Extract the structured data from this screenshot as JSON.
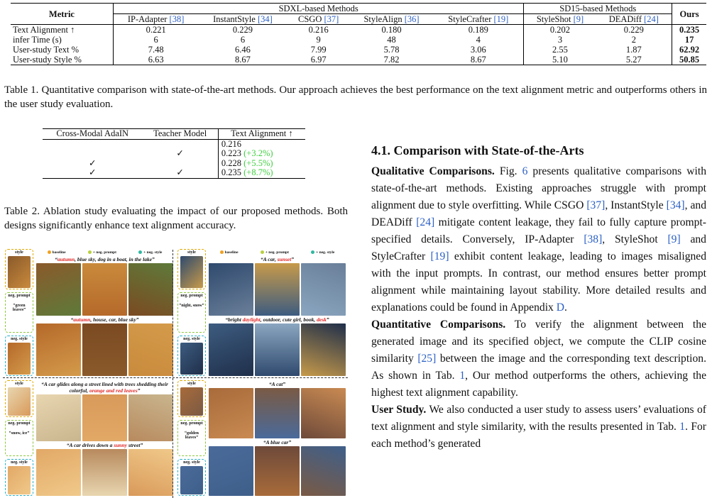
{
  "table1": {
    "header": {
      "metric": "Metric",
      "groups": [
        {
          "label": "SDXL-based Methods",
          "methods": [
            {
              "name": "IP-Adapter",
              "ref": "[38]"
            },
            {
              "name": "InstantStyle",
              "ref": "[34]"
            },
            {
              "name": "CSGO",
              "ref": "[37]"
            },
            {
              "name": "StyleAlign",
              "ref": "[36]"
            },
            {
              "name": "StyleCrafter",
              "ref": "[19]"
            }
          ]
        },
        {
          "label": "SD15-based Methods",
          "methods": [
            {
              "name": "StyleShot",
              "ref": "[9]"
            },
            {
              "name": "DEADiff",
              "ref": "[24]"
            }
          ]
        }
      ],
      "ours": "Ours"
    },
    "rows": [
      {
        "label": "Text Alignment ↑",
        "values": [
          "0.221",
          "0.229",
          "0.216",
          "0.180",
          "0.189",
          "0.202",
          "0.229"
        ],
        "ours": "0.235"
      },
      {
        "label": "infer Time (s)",
        "values": [
          "6",
          "6",
          "9",
          "48",
          "4",
          "3",
          "2"
        ],
        "ours": "17"
      },
      {
        "label": "User-study Text %",
        "values": [
          "7.48",
          "6.46",
          "7.99",
          "5.78",
          "3.06",
          "2.55",
          "1.87"
        ],
        "ours": "62.92"
      },
      {
        "label": "User-study Style %",
        "values": [
          "6.63",
          "8.67",
          "6.97",
          "7.82",
          "8.67",
          "5.10",
          "5.27"
        ],
        "ours": "50.85"
      }
    ],
    "caption": "Table 1. Quantitative comparison with state-of-the-art methods. Our approach achieves the best performance on the text alignment metric and outperforms others in the user study evaluation."
  },
  "table2": {
    "columns": [
      "Cross-Modal AdaIN",
      "Teacher Model",
      "Text Alignment ↑"
    ],
    "rows": [
      {
        "cells": [
          null,
          null
        ],
        "value": "0.216"
      },
      {
        "cells": [
          null,
          "✓"
        ],
        "value": "0.223",
        "gain": "(+3.2%)"
      },
      {
        "cells": [
          "✓",
          null
        ],
        "value": "0.228",
        "gain": "(+5.5%)"
      },
      {
        "cells": [
          "✓",
          "✓"
        ],
        "value": "0.235",
        "gain": "(+8.7%)"
      }
    ],
    "caption": "Table 2. Ablation study evaluating the impact of our proposed methods. Both designs significantly enhance text alignment accuracy."
  },
  "figure": {
    "legend": [
      "baseline",
      "+ neg. prompt",
      "+ neg. style"
    ],
    "side_labels": {
      "style": "style",
      "neg_prompt": "neg. prompt",
      "neg_style": "neg. style"
    },
    "panels": [
      {
        "neg_prompt": "“green leaves”",
        "prompts": [
          [
            {
              "text": "“"
            },
            {
              "highlight": "autumn"
            },
            {
              "text": ", blue sky, dog in a boat, in the lake”"
            }
          ],
          [
            {
              "text": "“"
            },
            {
              "highlight": "autumn"
            },
            {
              "text": ", house, car, blue sky”"
            }
          ]
        ]
      },
      {
        "neg_prompt": "“night, snow”",
        "prompts": [
          [
            {
              "text": "“A car, "
            },
            {
              "highlight": "sunset"
            },
            {
              "text": "”"
            }
          ],
          [
            {
              "text": "“bright "
            },
            {
              "highlight": "daylight"
            },
            {
              "text": ", outdoor, cute girl, book, "
            },
            {
              "highlight": "desk"
            },
            {
              "text": "”"
            }
          ]
        ]
      },
      {
        "neg_prompt": "“snow, ice”",
        "prompts": [
          [
            {
              "text": "“A car glides along a street lined with trees shedding their colorful, "
            },
            {
              "highlight": "orange and red leaves"
            },
            {
              "text": "”"
            }
          ],
          [
            {
              "text": "“A car drives down a "
            },
            {
              "highlight": "sunny"
            },
            {
              "text": " street”"
            }
          ]
        ]
      },
      {
        "neg_prompt": "“golden leaves”",
        "prompts": [
          [
            {
              "text": "“A cat”"
            }
          ],
          [
            {
              "text": "“A blue car”"
            }
          ]
        ]
      }
    ]
  },
  "section": {
    "heading": "4.1. Comparison with State-of-the-Arts",
    "paragraphs": [
      {
        "lead": "Qualitative Comparisons.",
        "runs": [
          {
            "text": " Fig. "
          },
          {
            "link": "6"
          },
          {
            "text": " presents qualitative comparisons with state-of-the-art methods. Existing approaches struggle with prompt alignment due to style overfitting. While CSGO "
          },
          {
            "link": "[37]"
          },
          {
            "text": ", InstantStyle "
          },
          {
            "link": "[34]"
          },
          {
            "text": ", and DEADiff "
          },
          {
            "link": "[24]"
          },
          {
            "text": " mitigate content leakage, they fail to fully capture prompt-specified details. Conversely, IP-Adapter "
          },
          {
            "link": "[38]"
          },
          {
            "text": ", StyleShot "
          },
          {
            "link": "[9]"
          },
          {
            "text": " and StyleCrafter "
          },
          {
            "link": "[19]"
          },
          {
            "text": " exhibit content leakage, leading to images misaligned with the input prompts. In contrast, our method ensures better prompt alignment while maintaining layout stability. More detailed results and explanations could be found in Appendix "
          },
          {
            "link": "D"
          },
          {
            "text": "."
          }
        ]
      },
      {
        "lead": "Quantitative Comparisons.",
        "runs": [
          {
            "text": " To verify the alignment between the generated image and its specified object, we compute the CLIP cosine similarity "
          },
          {
            "link": "[25]"
          },
          {
            "text": " between the image and the corresponding text description. As shown in Tab. "
          },
          {
            "link": "1"
          },
          {
            "text": ", Our method outperforms the others, achieving the highest text alignment capability."
          }
        ]
      },
      {
        "lead": "User Study.",
        "runs": [
          {
            "text": " We also conducted a user study to assess users’ evaluations of text alignment and style similarity, with the results presented in Tab. "
          },
          {
            "link": "1"
          },
          {
            "text": ". For each method’s generated"
          }
        ]
      }
    ]
  }
}
